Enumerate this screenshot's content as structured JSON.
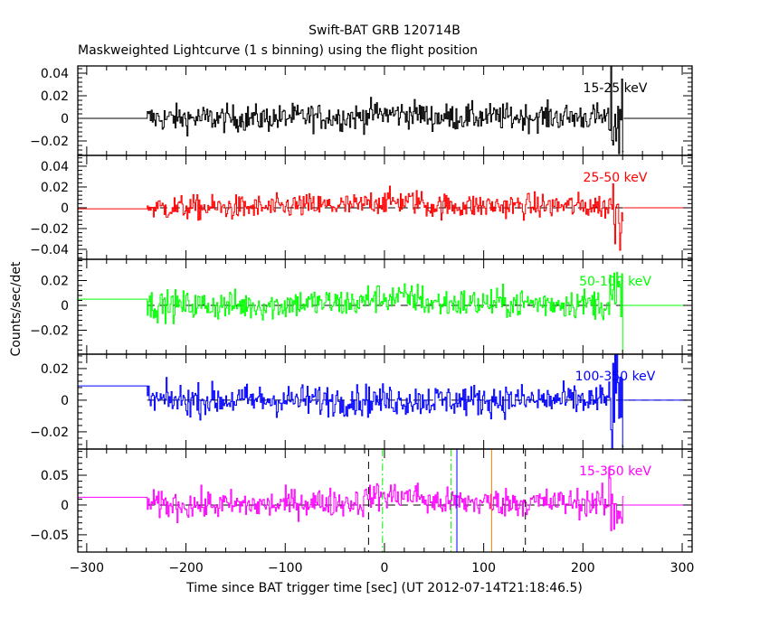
{
  "chart_data": {
    "type": "line",
    "title": "Swift-BAT GRB 120714B",
    "subtitle": "Maskweighted Lightcurve (1 s binning) using the flight position",
    "xlabel": "Time since BAT trigger time [sec] (UT 2012-07-14T21:18:46.5)",
    "ylabel": "Counts/sec/det",
    "xlim": [
      -309,
      310
    ],
    "xticks": [
      -300,
      -200,
      -100,
      0,
      100,
      200,
      300
    ],
    "xtick_labels": [
      "−300",
      "−200",
      "−100",
      "0",
      "100",
      "200",
      "300"
    ],
    "panels": [
      {
        "label": "15-25 keV",
        "color": "#000000",
        "ylim": [
          -0.0328,
          0.0464
        ],
        "yticks": [
          -0.02,
          0,
          0.02,
          0.04
        ],
        "ytick_labels": [
          "−0.02",
          "0",
          "0.02",
          "0.04"
        ],
        "pre_level": 0.0,
        "sigma": 0.006,
        "bump": 0.004
      },
      {
        "label": "25-50 keV",
        "color": "#ff0000",
        "ylim": [
          -0.0496,
          0.0504
        ],
        "yticks": [
          -0.04,
          -0.02,
          0,
          0.02,
          0.04
        ],
        "ytick_labels": [
          "−0.04",
          "−0.02",
          "0",
          "0.02",
          "0.04"
        ],
        "pre_level": -0.001,
        "sigma": 0.006,
        "bump": 0.006
      },
      {
        "label": "50-100 keV",
        "color": "#00ff00",
        "ylim": [
          -0.0393,
          0.0371
        ],
        "yticks": [
          -0.02,
          0,
          0.02
        ],
        "ytick_labels": [
          "−0.02",
          "0",
          "0.02"
        ],
        "pre_level": 0.005,
        "sigma": 0.006,
        "bump": 0.006
      },
      {
        "label": "100-350 keV",
        "color": "#0000ff",
        "ylim": [
          -0.0309,
          0.0291
        ],
        "yticks": [
          -0.02,
          0,
          0.02
        ],
        "ytick_labels": [
          "−0.02",
          "0",
          "0.02"
        ],
        "pre_level": 0.009,
        "sigma": 0.005,
        "bump": 0.0
      },
      {
        "label": "15-350 keV",
        "color": "#ff00ff",
        "ylim": [
          -0.079,
          0.094
        ],
        "yticks": [
          -0.05,
          0,
          0.05
        ],
        "ytick_labels": [
          "−0.05",
          "0",
          "0.05"
        ],
        "pre_level": 0.013,
        "sigma": 0.012,
        "bump": 0.015
      }
    ],
    "data_range": [
      -239,
      240
    ],
    "bump_range": [
      -20,
      40
    ],
    "markers": [
      {
        "x": -16,
        "color": "#000000",
        "style": "dash"
      },
      {
        "x": -2,
        "color": "#00ff00",
        "style": "dashdot"
      },
      {
        "x": 67,
        "color": "#00ff00",
        "style": "dashdot"
      },
      {
        "x": 73,
        "color": "#0000ff",
        "style": "solid"
      },
      {
        "x": 108,
        "color": "#ff8000",
        "style": "solid"
      },
      {
        "x": 142,
        "color": "#000000",
        "style": "dash"
      }
    ]
  }
}
